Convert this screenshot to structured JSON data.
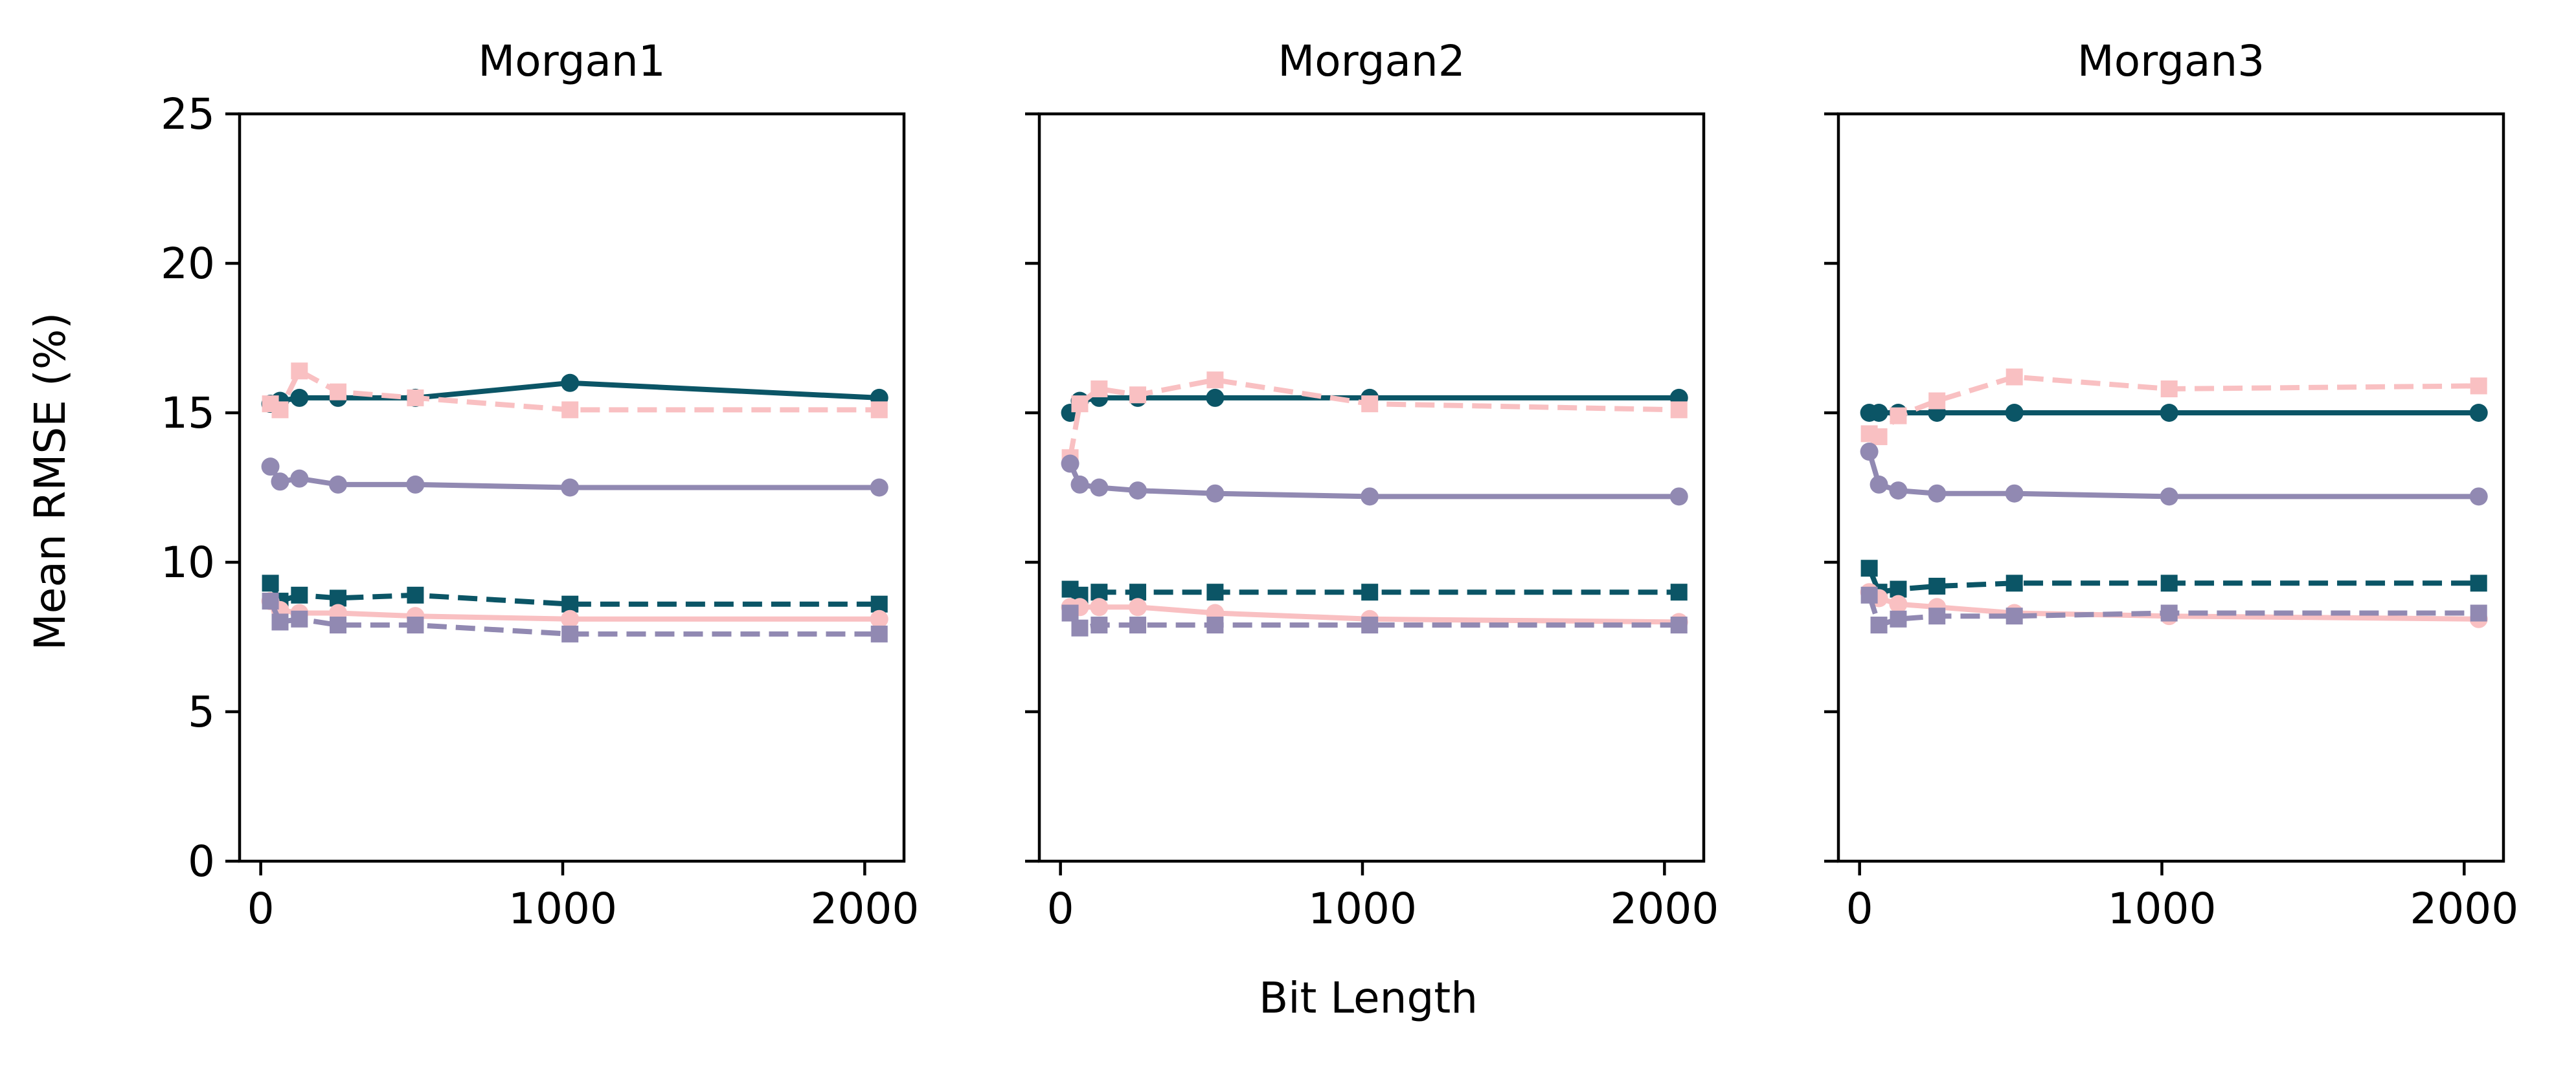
{
  "figure": {
    "ylabel": "Mean RMSE (%)",
    "xlabel": "Bit Length"
  },
  "colors": {
    "teal": "#0b5566",
    "purple": "#9189b2",
    "pink": "#f9c0c2"
  },
  "chart_data": [
    {
      "type": "line",
      "title": "Morgan1",
      "xlim": [
        -70,
        2130
      ],
      "ylim": [
        0,
        25
      ],
      "xticks": [
        "0",
        "1000",
        "2000"
      ],
      "yticks": [
        "0",
        "5",
        "10",
        "15",
        "20",
        "25"
      ],
      "x": [
        32,
        64,
        128,
        256,
        512,
        1024,
        2048
      ],
      "series": [
        {
          "color": "teal",
          "style": "solid",
          "marker": "circle",
          "values": [
            15.3,
            15.4,
            15.5,
            15.5,
            15.5,
            16.0,
            15.5
          ]
        },
        {
          "color": "pink",
          "style": "dashed",
          "marker": "square",
          "values": [
            15.3,
            15.1,
            16.4,
            15.7,
            15.5,
            15.1,
            15.1
          ]
        },
        {
          "color": "purple",
          "style": "solid",
          "marker": "circle",
          "values": [
            13.2,
            12.7,
            12.8,
            12.6,
            12.6,
            12.5,
            12.5
          ]
        },
        {
          "color": "teal",
          "style": "dashed",
          "marker": "square",
          "values": [
            9.3,
            8.7,
            8.9,
            8.8,
            8.9,
            8.6,
            8.6
          ]
        },
        {
          "color": "pink",
          "style": "solid",
          "marker": "circle",
          "values": [
            8.7,
            8.4,
            8.3,
            8.3,
            8.2,
            8.1,
            8.1
          ]
        },
        {
          "color": "purple",
          "style": "dashed",
          "marker": "square",
          "values": [
            8.7,
            8.0,
            8.1,
            7.9,
            7.9,
            7.6,
            7.6
          ]
        }
      ]
    },
    {
      "type": "line",
      "title": "Morgan2",
      "xlim": [
        -70,
        2130
      ],
      "ylim": [
        0,
        25
      ],
      "xticks": [
        "0",
        "1000",
        "2000"
      ],
      "yticks": [
        "0",
        "5",
        "10",
        "15",
        "20",
        "25"
      ],
      "x": [
        32,
        64,
        128,
        256,
        512,
        1024,
        2048
      ],
      "series": [
        {
          "color": "teal",
          "style": "solid",
          "marker": "circle",
          "values": [
            15.0,
            15.4,
            15.5,
            15.5,
            15.5,
            15.5,
            15.5
          ]
        },
        {
          "color": "pink",
          "style": "dashed",
          "marker": "square",
          "values": [
            13.5,
            15.3,
            15.8,
            15.6,
            16.1,
            15.3,
            15.1
          ]
        },
        {
          "color": "purple",
          "style": "solid",
          "marker": "circle",
          "values": [
            13.3,
            12.6,
            12.5,
            12.4,
            12.3,
            12.2,
            12.2
          ]
        },
        {
          "color": "teal",
          "style": "dashed",
          "marker": "square",
          "values": [
            9.1,
            8.9,
            9.0,
            9.0,
            9.0,
            9.0,
            9.0
          ]
        },
        {
          "color": "pink",
          "style": "solid",
          "marker": "circle",
          "values": [
            8.5,
            8.5,
            8.5,
            8.5,
            8.3,
            8.1,
            8.0
          ]
        },
        {
          "color": "purple",
          "style": "dashed",
          "marker": "square",
          "values": [
            8.3,
            7.8,
            7.9,
            7.9,
            7.9,
            7.9,
            7.9
          ]
        }
      ]
    },
    {
      "type": "line",
      "title": "Morgan3",
      "xlim": [
        -70,
        2130
      ],
      "ylim": [
        0,
        25
      ],
      "xticks": [
        "0",
        "1000",
        "2000"
      ],
      "yticks": [
        "0",
        "5",
        "10",
        "15",
        "20",
        "25"
      ],
      "x": [
        32,
        64,
        128,
        256,
        512,
        1024,
        2048
      ],
      "series": [
        {
          "color": "teal",
          "style": "solid",
          "marker": "circle",
          "values": [
            15.0,
            15.0,
            15.0,
            15.0,
            15.0,
            15.0,
            15.0
          ]
        },
        {
          "color": "pink",
          "style": "dashed",
          "marker": "square",
          "values": [
            14.3,
            14.2,
            14.9,
            15.4,
            16.2,
            15.8,
            15.9
          ]
        },
        {
          "color": "purple",
          "style": "solid",
          "marker": "circle",
          "values": [
            13.7,
            12.6,
            12.4,
            12.3,
            12.3,
            12.2,
            12.2
          ]
        },
        {
          "color": "teal",
          "style": "dashed",
          "marker": "square",
          "values": [
            9.8,
            9.0,
            9.1,
            9.2,
            9.3,
            9.3,
            9.3
          ]
        },
        {
          "color": "pink",
          "style": "solid",
          "marker": "circle",
          "values": [
            9.0,
            8.8,
            8.6,
            8.5,
            8.3,
            8.2,
            8.1
          ]
        },
        {
          "color": "purple",
          "style": "dashed",
          "marker": "square",
          "values": [
            8.9,
            7.9,
            8.1,
            8.2,
            8.2,
            8.3,
            8.3
          ]
        }
      ]
    }
  ]
}
